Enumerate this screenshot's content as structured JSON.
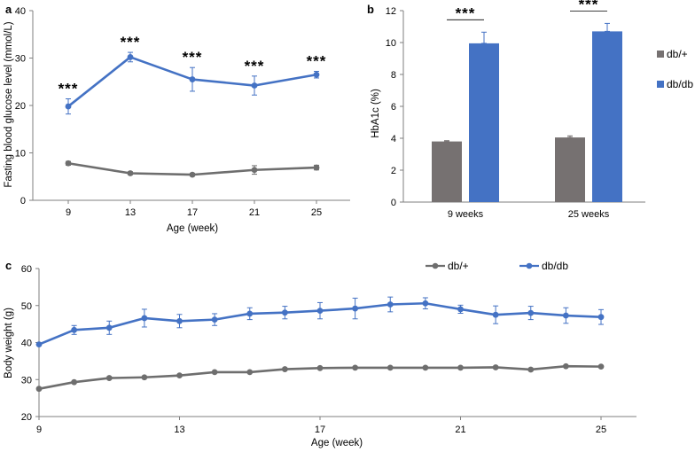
{
  "colors": {
    "dbplus": "#767171",
    "dbdb": "#4472C4",
    "axis": "#7f7f7f",
    "grey_line": "#6e6e6e"
  },
  "chart_data": [
    {
      "panel": "a",
      "type": "line",
      "xlabel": "Age (week)",
      "ylabel": "Fasting blood glucose level (mmol/L)",
      "categories": [
        "9",
        "13",
        "17",
        "21",
        "25"
      ],
      "yticks": [
        "0",
        "10",
        "20",
        "30",
        "40"
      ],
      "ylim": [
        0,
        40
      ],
      "series": [
        {
          "name": "db/+",
          "values": [
            7.8,
            5.7,
            5.4,
            6.4,
            6.9
          ],
          "errors": [
            0.4,
            0.3,
            0.3,
            0.9,
            0.5
          ]
        },
        {
          "name": "db/db",
          "values": [
            19.8,
            30.2,
            25.5,
            24.2,
            26.5
          ],
          "errors": [
            1.6,
            1.0,
            2.5,
            2.0,
            0.7
          ]
        }
      ],
      "annotations": [
        "***",
        "***",
        "***",
        "***",
        "***"
      ]
    },
    {
      "panel": "b",
      "type": "bar",
      "xlabel": "",
      "ylabel": "HbA1c (%)",
      "categories": [
        "9 weeks",
        "25 weeks"
      ],
      "yticks": [
        "0",
        "2",
        "4",
        "6",
        "8",
        "10",
        "12"
      ],
      "ylim": [
        0,
        12
      ],
      "series": [
        {
          "name": "db/+",
          "values": [
            3.8,
            4.05
          ],
          "errors": [
            0.05,
            0.1
          ]
        },
        {
          "name": "db/db",
          "values": [
            9.95,
            10.7
          ],
          "errors": [
            0.7,
            0.5
          ]
        }
      ],
      "legend": [
        "db/+",
        "db/db"
      ],
      "annotations": [
        "***",
        "***"
      ]
    },
    {
      "panel": "c",
      "type": "line",
      "xlabel": "Age (week)",
      "ylabel": "Body weight (g)",
      "x": [
        9,
        10,
        11,
        12,
        13,
        14,
        15,
        16,
        17,
        18,
        19,
        20,
        21,
        22,
        23,
        24,
        25
      ],
      "xticks": [
        "9",
        "13",
        "17",
        "21",
        "25"
      ],
      "yticks": [
        "20",
        "30",
        "40",
        "50",
        "60"
      ],
      "ylim": [
        20,
        60
      ],
      "series": [
        {
          "name": "db/+",
          "values": [
            27.5,
            29.3,
            30.4,
            30.6,
            31.1,
            32.0,
            32.0,
            32.8,
            33.1,
            33.2,
            33.2,
            33.2,
            33.2,
            33.3,
            32.7,
            33.6,
            33.5
          ],
          "errors": [
            0.3,
            0.3,
            0.3,
            0.3,
            0.3,
            0.3,
            0.3,
            0.3,
            0.3,
            0.3,
            0.3,
            0.3,
            0.3,
            0.3,
            0.3,
            0.3,
            0.3
          ]
        },
        {
          "name": "db/db",
          "values": [
            39.5,
            43.4,
            44.0,
            46.6,
            45.8,
            46.2,
            47.8,
            48.1,
            48.6,
            49.2,
            50.3,
            50.6,
            49.0,
            47.5,
            48.0,
            47.3,
            46.9
          ],
          "errors": [
            0.3,
            1.2,
            1.8,
            2.4,
            1.8,
            1.6,
            1.6,
            1.7,
            2.2,
            2.8,
            2.0,
            1.5,
            1.1,
            2.4,
            1.8,
            2.1,
            2.0
          ]
        }
      ],
      "legend": [
        "db/+",
        "db/db"
      ]
    }
  ]
}
